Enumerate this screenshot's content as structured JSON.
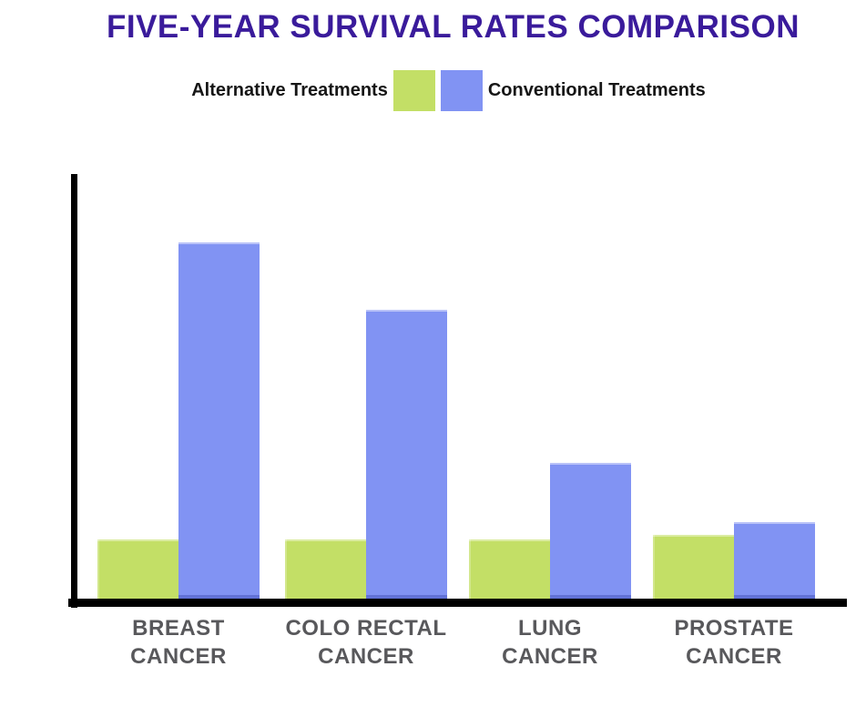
{
  "title": {
    "text": "FIVE-YEAR SURVIVAL RATES COMPARISON",
    "color": "#3A1B9B"
  },
  "legend": {
    "alternative_label": "Alternative Treatments",
    "conventional_label": "Conventional Treatments"
  },
  "colors": {
    "alternative": "#C3DF66",
    "conventional": "#8193F3",
    "axis": "#000000",
    "category_label": "#58585B",
    "legend_text": "#161616",
    "title": "#3A1B9B",
    "background": "#FFFFFF"
  },
  "chart_data": {
    "type": "bar",
    "title": "FIVE-YEAR SURVIVAL RATES COMPARISON",
    "categories": [
      "BREAST CANCER",
      "COLO RECTAL CANCER",
      "LUNG CANCER",
      "PROSTATE CANCER"
    ],
    "category_label_lines": [
      [
        "BREAST",
        "CANCER"
      ],
      [
        "COLO RECTAL",
        "CANCER"
      ],
      [
        "LUNG",
        "CANCER"
      ],
      [
        "PROSTATE",
        "CANCER"
      ]
    ],
    "series": [
      {
        "name": "Alternative Treatments",
        "color": "#C3DF66",
        "values": [
          14,
          14,
          14,
          15
        ]
      },
      {
        "name": "Conventional Treatments",
        "color": "#8193F3",
        "values": [
          84,
          68,
          32,
          18
        ]
      }
    ],
    "xlabel": "",
    "ylabel": "",
    "ylim": [
      0,
      100
    ],
    "grid": false,
    "y_tick_labels_shown": false,
    "legend_position": "top"
  }
}
